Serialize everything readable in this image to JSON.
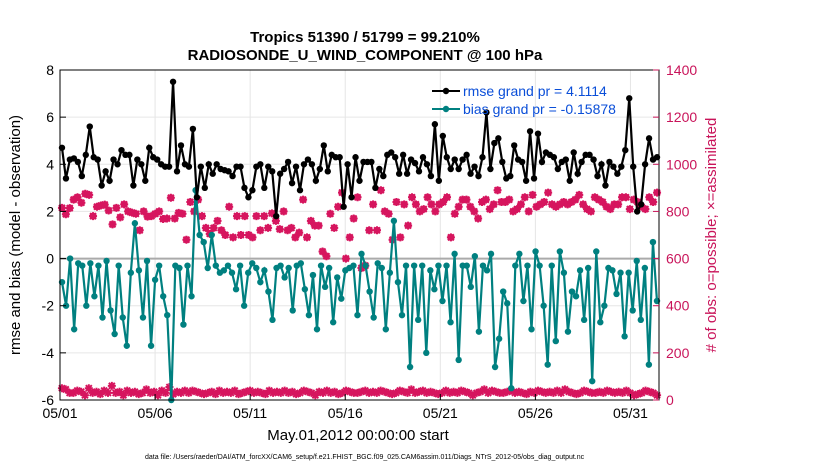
{
  "chart_data": {
    "type": "line",
    "title": [
      "Tropics 51390 / 51799 = 99.210%",
      "RADIOSONDE_U_WIND_COMPONENT @ 100 hPa"
    ],
    "xlabel": "May.01,2012 00:00:00 start",
    "ylabel_left": "rmse and bias (model - observation)",
    "ylabel_right": "# of obs: o=possible; ×=assimilated",
    "xlim": [
      0,
      31.5
    ],
    "ylim_left": [
      -6,
      8
    ],
    "ylim_right": [
      0,
      1400
    ],
    "x_ticks": [
      0,
      5,
      10,
      15,
      20,
      25,
      30
    ],
    "x_tick_labels": [
      "05/01",
      "05/06",
      "05/11",
      "05/16",
      "05/21",
      "05/26",
      "05/31"
    ],
    "y_left_ticks": [
      -6,
      -4,
      -2,
      0,
      2,
      4,
      6,
      8
    ],
    "y_right_ticks": [
      0,
      200,
      400,
      600,
      800,
      1000,
      1200,
      1400
    ],
    "zero_line": 0,
    "legend": {
      "position": "top-right",
      "entries": [
        "rmse grand pr = 4.1114",
        "bias grand pr = -0.15878"
      ]
    },
    "colors": {
      "rmse": "#000000",
      "bias": "#008080",
      "obs": "#d6155e",
      "zero": "#aaaaaa",
      "right_axis": "#c9145a"
    },
    "series": [
      {
        "name": "rmse",
        "axis": "left",
        "values": [
          4.7,
          3.4,
          4.2,
          4.25,
          4.1,
          3.5,
          4.4,
          5.6,
          4.3,
          4.2,
          3.1,
          3.7,
          3.3,
          4.2,
          4.0,
          4.6,
          4.4,
          4.4,
          3.1,
          4.2,
          4.0,
          3.3,
          4.7,
          4.3,
          4.2,
          4.0,
          3.9,
          3.9,
          7.5,
          3.7,
          4.8,
          4.0,
          3.9,
          5.5,
          2.6,
          3.9,
          3.0,
          4.0,
          3.6,
          4.0,
          3.8,
          3.75,
          3.7,
          3.5,
          3.9,
          3.9,
          3.0,
          2.6,
          2.9,
          3.9,
          4.0,
          3.0,
          3.9,
          3.7,
          1.8,
          3.6,
          3.8,
          4.1,
          3.2,
          3.9,
          2.9,
          4.0,
          4.2,
          4.0,
          3.3,
          3.8,
          4.8,
          3.7,
          4.4,
          4.3,
          4.3,
          2.2,
          4.0,
          2.6,
          4.3,
          3.3,
          4.1,
          4.1,
          4.1,
          3.0,
          3.8,
          3.5,
          4.4,
          4.5,
          4.3,
          3.6,
          4.4,
          3.6,
          4.2,
          4.05,
          3.7,
          4.3,
          4.0,
          3.5,
          5.7,
          3.3,
          5.2,
          4.3,
          3.8,
          4.2,
          3.8,
          4.2,
          4.4,
          3.6,
          3.9,
          3.5,
          4.3,
          6.2,
          3.8,
          4.9,
          5.1,
          4.1,
          3.4,
          3.5,
          4.8,
          4.2,
          4.1,
          3.3,
          5.4,
          3.4,
          5.3,
          4.1,
          4.5,
          4.4,
          4.3,
          3.8,
          4.1,
          4.2,
          3.3,
          4.5,
          3.6,
          4.1,
          4.4,
          4.4,
          4.2,
          3.5,
          4.0,
          3.1,
          4.1,
          3.9,
          3.6,
          3.9,
          4.6,
          6.8,
          3.9,
          2.0,
          2.3,
          4.0,
          5.1,
          4.2,
          4.3
        ]
      },
      {
        "name": "bias",
        "axis": "left",
        "values": [
          -1.0,
          -2.0,
          0.0,
          -3.0,
          -0.2,
          -0.3,
          -2.0,
          -0.2,
          -1.6,
          -0.3,
          -2.5,
          -0.1,
          -2.2,
          -3.2,
          -0.3,
          -2.5,
          -3.7,
          -0.6,
          1.5,
          -0.5,
          -2.5,
          -0.1,
          -3.7,
          -0.9,
          -0.3,
          -1.6,
          -2.4,
          -6.0,
          -0.3,
          -0.4,
          -2.8,
          -0.3,
          -1.6,
          2.9,
          1.0,
          0.7,
          -0.4,
          1.0,
          -0.3,
          -0.6,
          -0.5,
          -0.3,
          -0.6,
          -1.3,
          -0.3,
          -2.0,
          -0.6,
          -0.2,
          -0.4,
          -1.0,
          -0.5,
          -1.4,
          -2.6,
          -0.4,
          -0.3,
          -0.8,
          -0.4,
          -2.2,
          -0.3,
          -0.2,
          -1.3,
          -2.4,
          -0.7,
          -3.0,
          -0.3,
          -1.2,
          -0.4,
          -2.7,
          -0.8,
          -1.7,
          -0.5,
          -0.4,
          -0.3,
          -2.4,
          0.2,
          -0.3,
          -1.4,
          -2.5,
          -0.2,
          -0.4,
          -3.0,
          -0.6,
          1.6,
          -1.0,
          -2.4,
          -0.3,
          -4.6,
          -0.3,
          -2.6,
          -0.3,
          -4.0,
          -0.5,
          -1.3,
          -0.3,
          -1.8,
          -0.3,
          -2.7,
          0.2,
          -4.3,
          -0.3,
          -0.3,
          -1.2,
          0.1,
          -3.1,
          -0.3,
          -0.5,
          0.2,
          -4.6,
          -3.4,
          -1.4,
          -1.9,
          -5.5,
          -0.3,
          0.2,
          -1.8,
          -0.3,
          -3.0,
          0.3,
          -0.3,
          -2.0,
          -4.5,
          -0.3,
          -3.5,
          0.3,
          -0.6,
          -3.1,
          -1.4,
          -1.6,
          -0.5,
          -2.6,
          -0.4,
          -5.2,
          0.3,
          -2.7,
          -2.0,
          -0.4,
          -0.5,
          -1.5,
          -0.6,
          -3.3,
          -0.6,
          -2.2,
          -0.1,
          -2.6,
          -0.4,
          -4.5,
          0.7,
          -1.8
        ]
      },
      {
        "name": "obs possible (o)",
        "axis": "right",
        "values": [
          815,
          788,
          814,
          850,
          860,
          837,
          875,
          870,
          780,
          820,
          825,
          829,
          804,
          745,
          815,
          775,
          830,
          800,
          795,
          790,
          720,
          800,
          778,
          780,
          790,
          800,
          768,
          770,
          858,
          770,
          794,
          790,
          680,
          840,
          800,
          850,
          780,
          730,
          705,
          730,
          760,
          720,
          700,
          820,
          690,
          780,
          700,
          780,
          700,
          690,
          780,
          720,
          780,
          730,
          792,
          760,
          725,
          800,
          720,
          730,
          690,
          710,
          850,
          690,
          760,
          740,
          740,
          630,
          610,
          790,
          730,
          820,
          880,
          600,
          690,
          770,
          860,
          560,
          570,
          720,
          830,
          720,
          890,
          800,
          790,
          680,
          840,
          690,
          830,
          740,
          860,
          830,
          800,
          810,
          860,
          830,
          800,
          830,
          840,
          860,
          690,
          790,
          820,
          850,
          850,
          820,
          800,
          770,
          840,
          850,
          810,
          830,
          890,
          840,
          840,
          850,
          800,
          810,
          830,
          860,
          800,
          870,
          820,
          830,
          840,
          880,
          830,
          820,
          830,
          840,
          830,
          840,
          850,
          870,
          830,
          810,
          800,
          860,
          850,
          840,
          820,
          810,
          830,
          830,
          860,
          860,
          810,
          850,
          840,
          820,
          810,
          860,
          840,
          880
        ]
      },
      {
        "name": "obs assimilated (×)",
        "axis": "right",
        "values": [
          815,
          788,
          814,
          850,
          860,
          837,
          875,
          870,
          780,
          820,
          825,
          829,
          804,
          745,
          815,
          775,
          830,
          800,
          795,
          790,
          720,
          800,
          778,
          780,
          790,
          800,
          768,
          770,
          858,
          770,
          794,
          790,
          680,
          840,
          800,
          850,
          780,
          730,
          705,
          730,
          760,
          720,
          700,
          820,
          690,
          780,
          700,
          780,
          700,
          690,
          780,
          720,
          780,
          730,
          792,
          760,
          725,
          800,
          720,
          730,
          690,
          710,
          850,
          690,
          760,
          740,
          740,
          630,
          610,
          790,
          730,
          820,
          880,
          600,
          690,
          770,
          860,
          560,
          570,
          720,
          830,
          720,
          890,
          800,
          790,
          680,
          840,
          690,
          830,
          740,
          860,
          830,
          800,
          810,
          860,
          830,
          800,
          830,
          840,
          860,
          690,
          790,
          820,
          850,
          850,
          820,
          800,
          770,
          840,
          850,
          810,
          830,
          890,
          840,
          840,
          850,
          800,
          810,
          830,
          860,
          800,
          870,
          820,
          830,
          840,
          880,
          830,
          820,
          830,
          840,
          830,
          840,
          850,
          870,
          830,
          810,
          800,
          860,
          850,
          840,
          820,
          810,
          830,
          830,
          860,
          860,
          810,
          850,
          840,
          820,
          810,
          860,
          840,
          880
        ]
      }
    ],
    "lower_obs_band": {
      "name": "obs near surface of right axis",
      "axis": "right",
      "values": [
        50,
        45,
        30,
        30,
        40,
        35,
        20,
        50,
        30,
        35,
        25,
        40,
        30,
        60,
        30,
        35,
        20,
        40,
        30,
        35,
        25,
        30,
        45,
        30,
        35,
        20,
        40,
        30,
        55,
        25,
        35,
        30,
        40,
        30,
        40,
        35,
        30,
        25,
        30,
        35,
        25,
        40,
        30,
        35,
        30,
        40,
        25,
        30,
        35,
        40,
        30,
        35,
        30,
        25,
        40,
        30,
        35,
        30,
        40,
        30,
        35,
        25,
        30,
        40,
        35,
        30,
        20,
        35,
        30,
        40,
        30,
        35,
        25,
        30,
        40,
        35,
        30,
        30,
        35,
        40,
        30,
        35,
        30,
        40,
        35,
        30,
        25,
        30,
        40,
        35,
        30,
        45,
        30,
        35,
        40,
        30,
        35,
        30,
        25,
        30,
        40,
        30,
        35,
        30,
        40,
        35,
        30,
        20,
        30,
        35,
        45,
        30,
        40,
        35,
        30,
        30,
        35,
        40,
        30,
        35,
        30,
        25,
        35,
        30,
        40,
        35,
        30,
        35,
        30,
        40,
        30,
        45,
        35,
        30,
        25,
        30,
        40,
        35,
        30,
        30,
        35,
        30,
        40,
        35,
        30,
        35,
        30,
        40,
        30,
        20,
        25,
        30,
        40,
        35,
        30,
        20
      ]
    }
  },
  "footer": "data file: /Users/raeder/DAI/ATM_forcXX/CAM6_setup/f.e21.FHIST_BGC.f09_025.CAM6assim.011/Diags_NTrS_2012-05/obs_diag_output.nc"
}
